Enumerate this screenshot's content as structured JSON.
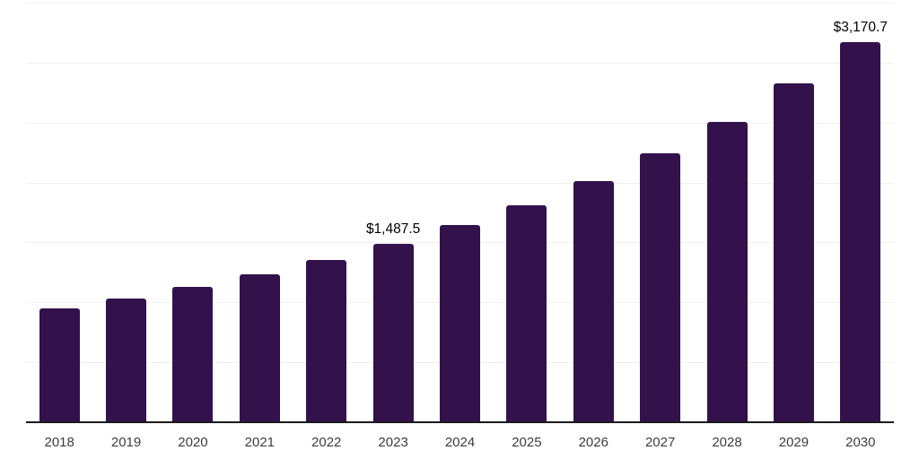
{
  "chart_data": {
    "type": "bar",
    "title": "",
    "xlabel": "",
    "ylabel": "",
    "categories": [
      "2018",
      "2019",
      "2020",
      "2021",
      "2022",
      "2023",
      "2024",
      "2025",
      "2026",
      "2027",
      "2028",
      "2029",
      "2030"
    ],
    "values": [
      950,
      1035,
      1130,
      1235,
      1355,
      1487.5,
      1645,
      1810,
      2015,
      2245,
      2505,
      2830,
      3170.7
    ],
    "data_labels": [
      {
        "category": "2023",
        "text": "$1,487.5"
      },
      {
        "category": "2030",
        "text": "$3,170.7"
      }
    ],
    "ylim": [
      0,
      3500
    ],
    "gridline_step": 500,
    "grid": true,
    "legend": false,
    "y_axis_ticks_visible": false,
    "colors": {
      "bar": "#33124C",
      "gridline": "#f0f0f0",
      "axis_line": "#1a1a1a",
      "tick_label": "#3d3d3d",
      "data_label": "#000000",
      "background": "#ffffff"
    }
  }
}
